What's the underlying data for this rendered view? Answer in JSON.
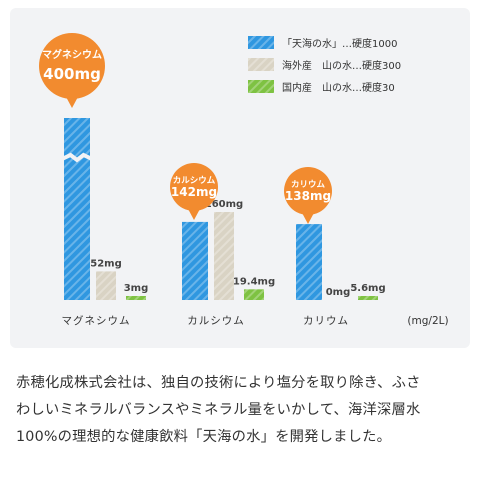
{
  "chart_data": {
    "type": "bar",
    "unit_label": "(mg/2L)",
    "categories": [
      "マグネシウム",
      "カルシウム",
      "カリウム"
    ],
    "series": [
      {
        "name": "「天海の水」…硬度1000",
        "color": "#2f97e0",
        "values": [
          400,
          142,
          138
        ]
      },
      {
        "name": "海外産　山の水…硬度300",
        "color": "#d9d3c4",
        "values": [
          52,
          160,
          0
        ]
      },
      {
        "name": "国内産　山の水…硬度30",
        "color": "#7ec242",
        "values": [
          3,
          19.4,
          5.6
        ]
      }
    ],
    "bar_labels": [
      [
        "400mg",
        "52mg",
        "3mg"
      ],
      [
        "142mg",
        "160mg",
        "19.4mg"
      ],
      [
        "138mg",
        "0mg",
        "5.6mg"
      ]
    ],
    "callouts": [
      {
        "name": "マグネシウム",
        "value": "400mg"
      },
      {
        "name": "カルシウム",
        "value": "142mg"
      },
      {
        "name": "カリウム",
        "value": "138mg"
      }
    ],
    "axis_break_on": "マグネシウム",
    "grid": false,
    "legend_position": "top-right",
    "callout_color": "#f28b2f"
  },
  "description": {
    "lines": [
      "赤穂化成株式会社は、独自の技術により塩分を取り除き、ふさ",
      "わしいミネラルバランスやミネラル量をいかして、海洋深層水",
      "100%の理想的な健康飲料「天海の水」を開発しました。"
    ]
  }
}
